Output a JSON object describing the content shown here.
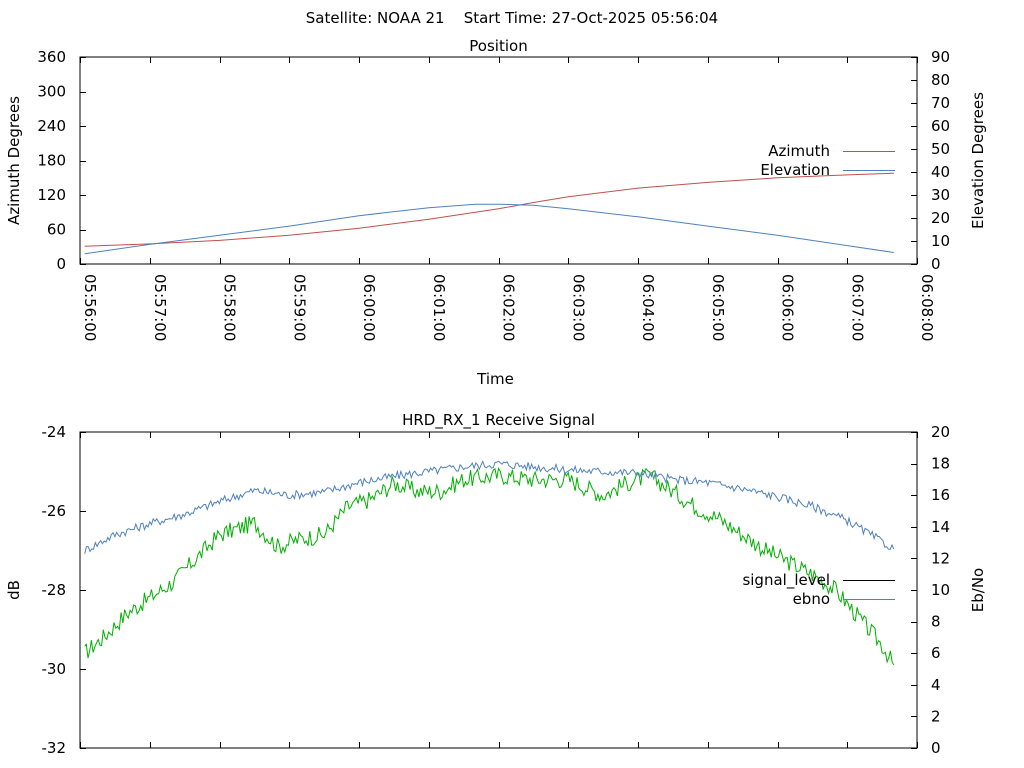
{
  "header": {
    "satellite_label": "Satellite: NOAA 21",
    "start_time_label": "Start Time: 27-Oct-2025 05:56:04"
  },
  "chart_data": [
    {
      "type": "line",
      "title": "Position",
      "xlabel": "Time",
      "ylabel": "Azimuth Degrees",
      "y2label": "Elevation Degrees",
      "x_range": [
        "05:56:00",
        "06:08:00"
      ],
      "x_ticks": [
        "05:56:00",
        "05:57:00",
        "05:58:00",
        "05:59:00",
        "06:00:00",
        "06:01:00",
        "06:02:00",
        "06:03:00",
        "06:04:00",
        "06:05:00",
        "06:06:00",
        "06:07:00",
        "06:08:00"
      ],
      "ylim": [
        0,
        360
      ],
      "y_ticks": [
        0,
        60,
        120,
        180,
        240,
        300,
        360
      ],
      "y2lim": [
        0,
        90
      ],
      "y2_ticks": [
        0,
        10,
        20,
        30,
        40,
        50,
        60,
        70,
        80,
        90
      ],
      "legend_position": "right",
      "grid": false,
      "series": [
        {
          "name": "Azimuth",
          "axis": "left",
          "color": "#c0504d",
          "points": [
            [
              "05:56:04",
              31
            ],
            [
              "05:57:00",
              35
            ],
            [
              "05:58:00",
              41
            ],
            [
              "05:59:00",
              50
            ],
            [
              "06:00:00",
              62
            ],
            [
              "06:01:00",
              78
            ],
            [
              "06:02:00",
              96
            ],
            [
              "06:02:30",
              107
            ],
            [
              "06:03:00",
              117
            ],
            [
              "06:04:00",
              132
            ],
            [
              "06:05:00",
              142
            ],
            [
              "06:06:00",
              150
            ],
            [
              "06:07:00",
              155
            ],
            [
              "06:07:40",
              158
            ]
          ]
        },
        {
          "name": "Elevation",
          "axis": "right",
          "color": "#4f81bd",
          "points": [
            [
              "05:56:04",
              4.5
            ],
            [
              "05:57:00",
              8.5
            ],
            [
              "05:58:00",
              12.5
            ],
            [
              "05:59:00",
              16.5
            ],
            [
              "06:00:00",
              21
            ],
            [
              "06:01:00",
              24.5
            ],
            [
              "06:01:40",
              26
            ],
            [
              "06:02:00",
              26
            ],
            [
              "06:02:30",
              25.5
            ],
            [
              "06:03:00",
              24
            ],
            [
              "06:04:00",
              20.5
            ],
            [
              "06:05:00",
              16.5
            ],
            [
              "06:06:00",
              12.5
            ],
            [
              "06:07:00",
              8
            ],
            [
              "06:07:40",
              5
            ]
          ]
        }
      ]
    },
    {
      "type": "line",
      "title": "HRD_RX_1 Receive Signal",
      "ylabel": "dB",
      "y2label": "Eb/No",
      "x_range": [
        "05:56:00",
        "06:08:00"
      ],
      "ylim": [
        -32,
        -24
      ],
      "y_ticks": [
        -32,
        -30,
        -28,
        -26,
        -24
      ],
      "y2lim": [
        0,
        20
      ],
      "y2_ticks": [
        0,
        2,
        4,
        6,
        8,
        10,
        12,
        14,
        16,
        18,
        20
      ],
      "legend_position": "right",
      "grid": false,
      "series": [
        {
          "name": "signal_level",
          "axis": "left",
          "legend_color": "#000000",
          "color": "#00b000",
          "points": [
            [
              "05:56:04",
              -29.6
            ],
            [
              "05:56:20",
              -29.2
            ],
            [
              "05:56:40",
              -28.6
            ],
            [
              "05:57:00",
              -28.2
            ],
            [
              "05:57:20",
              -27.8
            ],
            [
              "05:57:40",
              -27.2
            ],
            [
              "05:58:00",
              -26.6
            ],
            [
              "05:58:30",
              -26.3
            ],
            [
              "05:58:50",
              -26.9
            ],
            [
              "05:59:10",
              -26.7
            ],
            [
              "05:59:30",
              -26.6
            ],
            [
              "05:59:50",
              -25.9
            ],
            [
              "06:00:10",
              -25.7
            ],
            [
              "06:00:30",
              -25.3
            ],
            [
              "06:00:50",
              -25.5
            ],
            [
              "06:01:10",
              -25.5
            ],
            [
              "06:01:30",
              -25.2
            ],
            [
              "06:02:00",
              -25.1
            ],
            [
              "06:02:30",
              -25.2
            ],
            [
              "06:03:00",
              -25.2
            ],
            [
              "06:03:30",
              -25.6
            ],
            [
              "06:03:50",
              -25.3
            ],
            [
              "06:04:10",
              -25.1
            ],
            [
              "06:04:30",
              -25.5
            ],
            [
              "06:04:50",
              -25.9
            ],
            [
              "06:05:10",
              -26.2
            ],
            [
              "06:05:30",
              -26.6
            ],
            [
              "06:05:50",
              -27.0
            ],
            [
              "06:06:10",
              -27.3
            ],
            [
              "06:06:30",
              -27.6
            ],
            [
              "06:06:50",
              -28.0
            ],
            [
              "06:07:10",
              -28.7
            ],
            [
              "06:07:30",
              -29.4
            ],
            [
              "06:07:40",
              -29.9
            ]
          ]
        },
        {
          "name": "ebno",
          "axis": "right",
          "color": "#4f81bd",
          "points": [
            [
              "05:56:04",
              12.5
            ],
            [
              "05:56:30",
              13.5
            ],
            [
              "05:57:00",
              14.2
            ],
            [
              "05:57:30",
              14.8
            ],
            [
              "05:58:00",
              15.6
            ],
            [
              "05:58:30",
              16.3
            ],
            [
              "05:59:00",
              16.0
            ],
            [
              "05:59:30",
              16.2
            ],
            [
              "06:00:00",
              16.8
            ],
            [
              "06:00:30",
              17.2
            ],
            [
              "06:01:00",
              17.5
            ],
            [
              "06:01:30",
              17.8
            ],
            [
              "06:02:00",
              18.0
            ],
            [
              "06:02:30",
              17.8
            ],
            [
              "06:03:00",
              17.6
            ],
            [
              "06:03:30",
              17.5
            ],
            [
              "06:04:00",
              17.4
            ],
            [
              "06:04:30",
              17.0
            ],
            [
              "06:05:00",
              16.8
            ],
            [
              "06:05:30",
              16.4
            ],
            [
              "06:06:00",
              15.9
            ],
            [
              "06:06:30",
              15.3
            ],
            [
              "06:07:00",
              14.4
            ],
            [
              "06:07:20",
              13.5
            ],
            [
              "06:07:40",
              12.6
            ]
          ]
        }
      ]
    }
  ]
}
